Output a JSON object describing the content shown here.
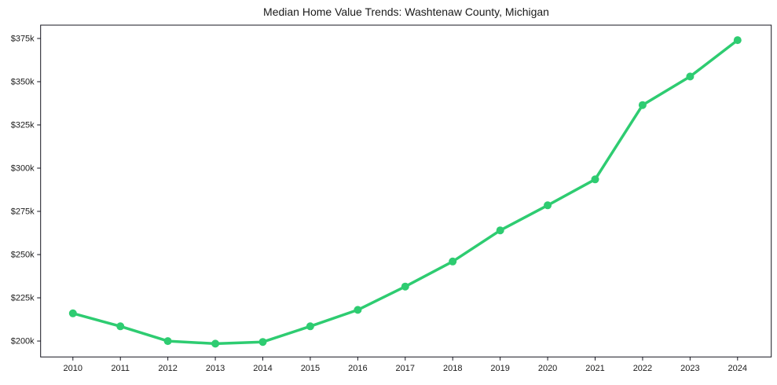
{
  "window": {
    "background": "#ffffff"
  },
  "chart_data": {
    "type": "line",
    "title": "Median Home Value Trends: Washtenaw County, Michigan",
    "xlabel": "",
    "ylabel": "",
    "x": [
      2010,
      2011,
      2012,
      2013,
      2014,
      2015,
      2016,
      2017,
      2018,
      2019,
      2020,
      2021,
      2022,
      2023,
      2024
    ],
    "x_tick_labels": [
      "2010",
      "2011",
      "2012",
      "2013",
      "2014",
      "2015",
      "2016",
      "2017",
      "2018",
      "2019",
      "2020",
      "2021",
      "2022",
      "2023",
      "2024"
    ],
    "series": [
      {
        "name": "Median Home Value",
        "color": "#2ecc71",
        "values": [
          216000,
          208500,
          200000,
          198500,
          199500,
          208500,
          218000,
          231500,
          246000,
          264000,
          278500,
          293500,
          336500,
          353000,
          374000
        ]
      }
    ],
    "y_ticks": [
      200000,
      225000,
      250000,
      275000,
      300000,
      325000,
      350000,
      375000
    ],
    "y_tick_labels": [
      "$200k",
      "$225k",
      "$250k",
      "$275k",
      "$300k",
      "$325k",
      "$350k",
      "$375k"
    ],
    "xlim": [
      2009.32,
      2024.71
    ],
    "ylim": [
      190800,
      382700
    ],
    "grid": false,
    "legend": false,
    "marker": "circle",
    "axis_color": "#15151f",
    "text_color": "#1a1a1a"
  }
}
